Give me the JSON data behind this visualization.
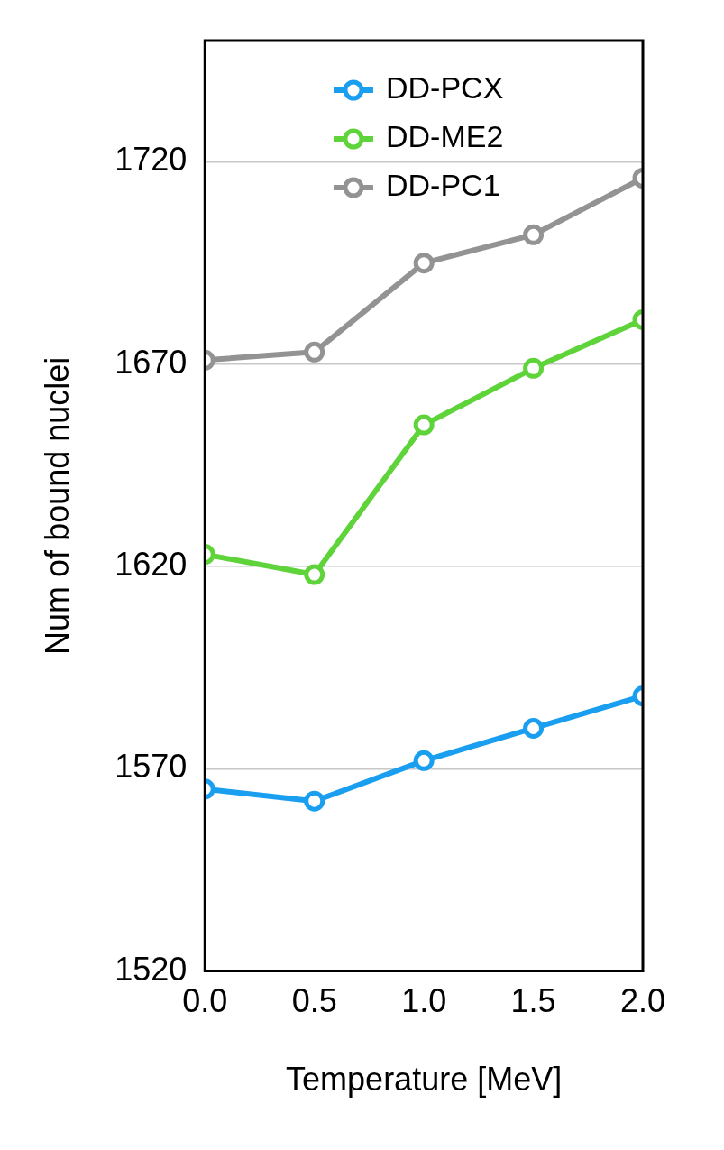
{
  "chart_data": {
    "type": "line",
    "xlabel": "Temperature [MeV]",
    "ylabel": "Num of bound nuclei",
    "x": [
      0,
      0.5,
      1,
      1.5,
      2
    ],
    "series": [
      {
        "name": "DD-PCX",
        "color": "#1a9ff0",
        "values": [
          1565,
          1562,
          1572,
          1580,
          1588
        ]
      },
      {
        "name": "DD-ME2",
        "color": "#5fd33a",
        "values": [
          1623,
          1618,
          1655,
          1669,
          1681
        ]
      },
      {
        "name": "DD-PC1",
        "color": "#939393",
        "values": [
          1671,
          1673,
          1695,
          1702,
          1716
        ]
      }
    ],
    "xlim": [
      0,
      2
    ],
    "xticks": [
      {
        "value": 0,
        "label": "0.0"
      },
      {
        "value": 0.5,
        "label": "0.5"
      },
      {
        "value": 1,
        "label": "1.0"
      },
      {
        "value": 1.5,
        "label": "1.5"
      },
      {
        "value": 2,
        "label": "2.0"
      }
    ],
    "ylim": [
      1520,
      1750
    ],
    "yticks": [
      1520,
      1570,
      1620,
      1670,
      1720
    ],
    "grid": "y",
    "legend": "top",
    "marker": "circle",
    "line_style": "solid"
  }
}
